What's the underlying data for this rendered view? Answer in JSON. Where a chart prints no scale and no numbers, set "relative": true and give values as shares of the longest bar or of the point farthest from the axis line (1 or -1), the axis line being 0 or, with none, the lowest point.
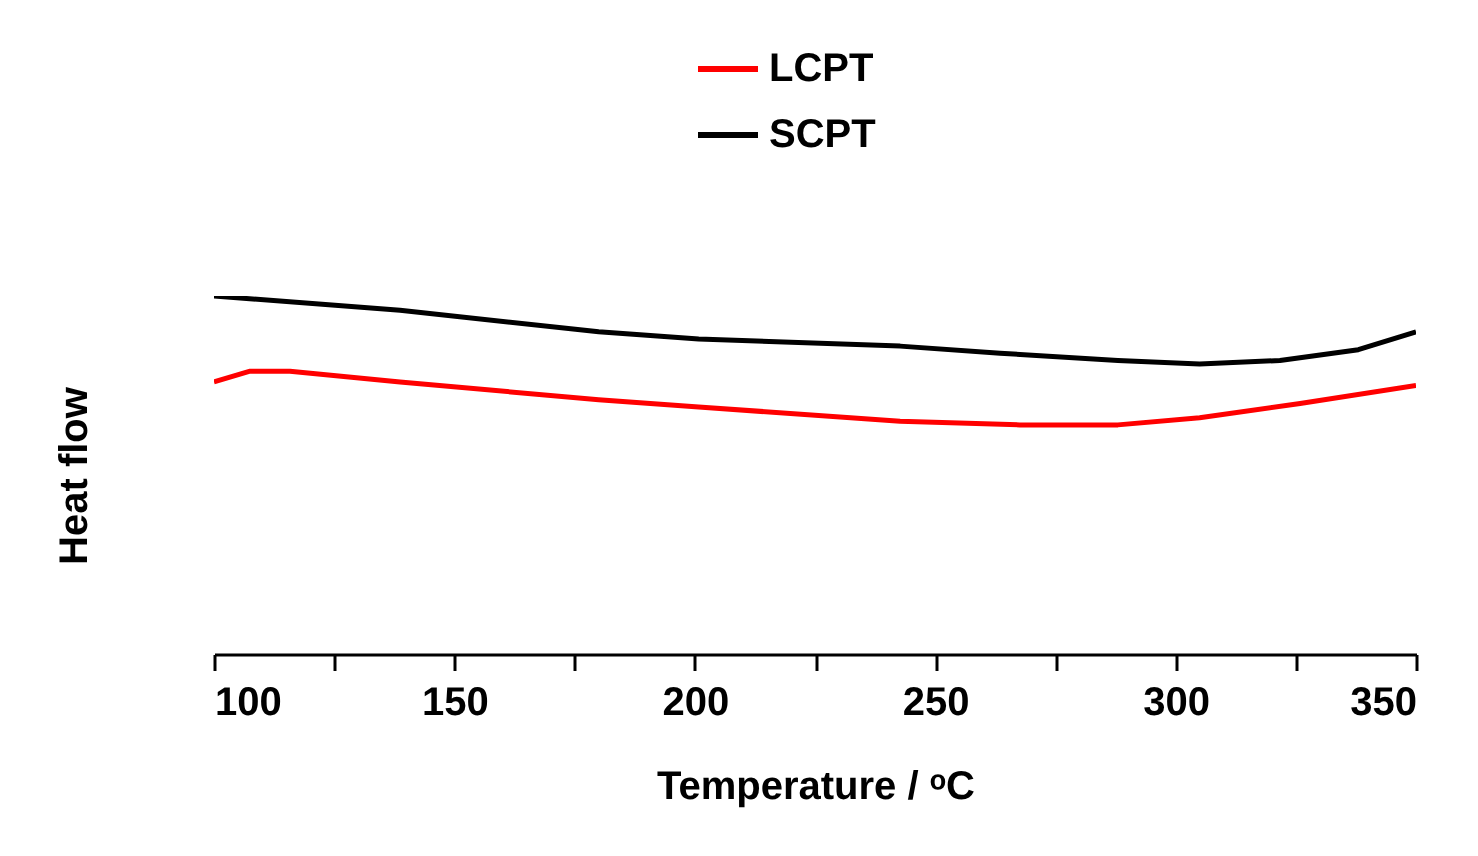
{
  "chart_data": {
    "type": "line",
    "xlabel": "Temperature / ᵒC",
    "ylabel": "Heat flow",
    "relative": true,
    "legend": "top",
    "grid": false,
    "marker": "none",
    "line_style": "solid",
    "xlim": [
      100,
      350
    ],
    "xticks": [
      100,
      {
        "value": 125,
        "label": null
      },
      150,
      {
        "value": 175,
        "label": null
      },
      200,
      {
        "value": 225,
        "label": null
      },
      250,
      {
        "value": 275,
        "label": null
      },
      300,
      {
        "value": 325,
        "label": null
      },
      350
    ],
    "series": [
      {
        "name": "LCPT",
        "color": "#ff0000",
        "x": [
          100,
          107.5,
          115.8,
          138.7,
          180,
          200.8,
          242.7,
          267.6,
          288,
          305,
          325.9,
          350
        ],
        "values": [
          0.76,
          0.79,
          0.79,
          0.76,
          0.71,
          0.69,
          0.65,
          0.64,
          0.64,
          0.66,
          0.7,
          0.75
        ]
      },
      {
        "name": "SCPT",
        "color": "#000000",
        "x": [
          100,
          138.7,
          180,
          200.8,
          242.7,
          263.5,
          288,
          305,
          321.7,
          338,
          350
        ],
        "values": [
          1,
          0.96,
          0.9,
          0.88,
          0.86,
          0.84,
          0.82,
          0.81,
          0.82,
          0.85,
          0.9
        ]
      }
    ]
  }
}
